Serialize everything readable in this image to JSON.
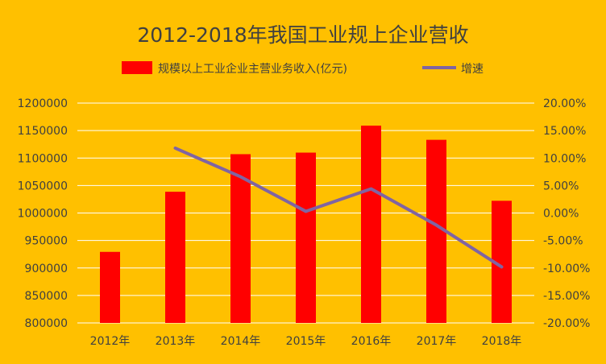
{
  "chart_data": {
    "type": "bar",
    "title": "2012-2018年我国工业规上企业营收",
    "categories": [
      "2012年",
      "2013年",
      "2014年",
      "2015年",
      "2016年",
      "2017年",
      "2018年"
    ],
    "series": [
      {
        "name": "规模以上工业企业主营业务收入(亿元)",
        "type": "bar",
        "axis": "left",
        "color": "#FF0000",
        "values": [
          929292,
          1038659,
          1107033,
          1109853,
          1158998,
          1133161,
          1022241
        ]
      },
      {
        "name": "增速",
        "type": "line",
        "axis": "right",
        "color": "#8064A2",
        "values": [
          null,
          11.8,
          6.6,
          0.3,
          4.4,
          -2.2,
          -9.8
        ]
      }
    ],
    "y_left": {
      "ylim": [
        800000,
        1200000
      ],
      "ticks": [
        "800000",
        "850000",
        "900000",
        "950000",
        "1000000",
        "1050000",
        "1100000",
        "1150000",
        "1200000"
      ]
    },
    "y_right": {
      "ylim": [
        -20,
        20
      ],
      "ticks": [
        "-20.00%",
        "-15.00%",
        "-10.00%",
        "-5.00%",
        "0.00%",
        "5.00%",
        "10.00%",
        "15.00%",
        "20.00%"
      ]
    },
    "grid": true,
    "legend_position": "top"
  }
}
